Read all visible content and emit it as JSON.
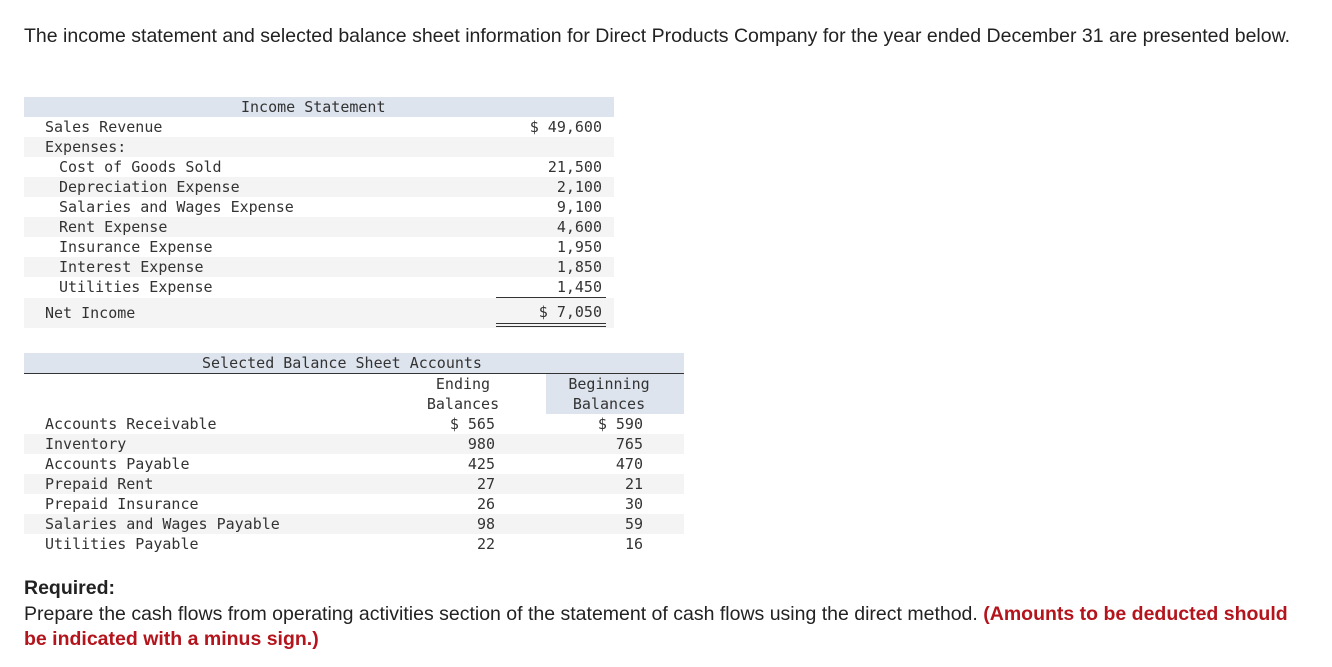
{
  "intro": "The income statement and selected balance sheet information for Direct Products Company for the year ended December 31 are presented below.",
  "income_statement": {
    "title": "Income Statement",
    "sales_label": "Sales Revenue",
    "sales_value": "$ 49,600",
    "expenses_label": "Expenses:",
    "expenses": [
      {
        "label": "Cost of Goods Sold",
        "value": "21,500"
      },
      {
        "label": "Depreciation Expense",
        "value": "2,100"
      },
      {
        "label": "Salaries and Wages Expense",
        "value": "9,100"
      },
      {
        "label": "Rent Expense",
        "value": "4,600"
      },
      {
        "label": "Insurance Expense",
        "value": "1,950"
      },
      {
        "label": "Interest Expense",
        "value": "1,850"
      },
      {
        "label": "Utilities Expense",
        "value": "1,450"
      }
    ],
    "net_income_label": "Net Income",
    "net_income_value": "$ 7,050"
  },
  "balance_sheet": {
    "title": "Selected Balance Sheet Accounts",
    "col_ending_1": "Ending",
    "col_ending_2": "Balances",
    "col_beginning_1": "Beginning",
    "col_beginning_2": "Balances",
    "rows": [
      {
        "label": "Accounts Receivable",
        "ending": "$ 565",
        "beginning": "$ 590"
      },
      {
        "label": "Inventory",
        "ending": "980",
        "beginning": "765"
      },
      {
        "label": "Accounts Payable",
        "ending": "425",
        "beginning": "470"
      },
      {
        "label": "Prepaid Rent",
        "ending": "27",
        "beginning": "21"
      },
      {
        "label": "Prepaid Insurance",
        "ending": "26",
        "beginning": "30"
      },
      {
        "label": "Salaries and Wages Payable",
        "ending": "98",
        "beginning": "59"
      },
      {
        "label": "Utilities Payable",
        "ending": "22",
        "beginning": "16"
      }
    ]
  },
  "required": {
    "title": "Required:",
    "text": "Prepare the cash flows from operating activities section of the statement of cash flows using the direct method.",
    "note": "(Amounts to be deducted should be indicated with a minus sign.)"
  }
}
